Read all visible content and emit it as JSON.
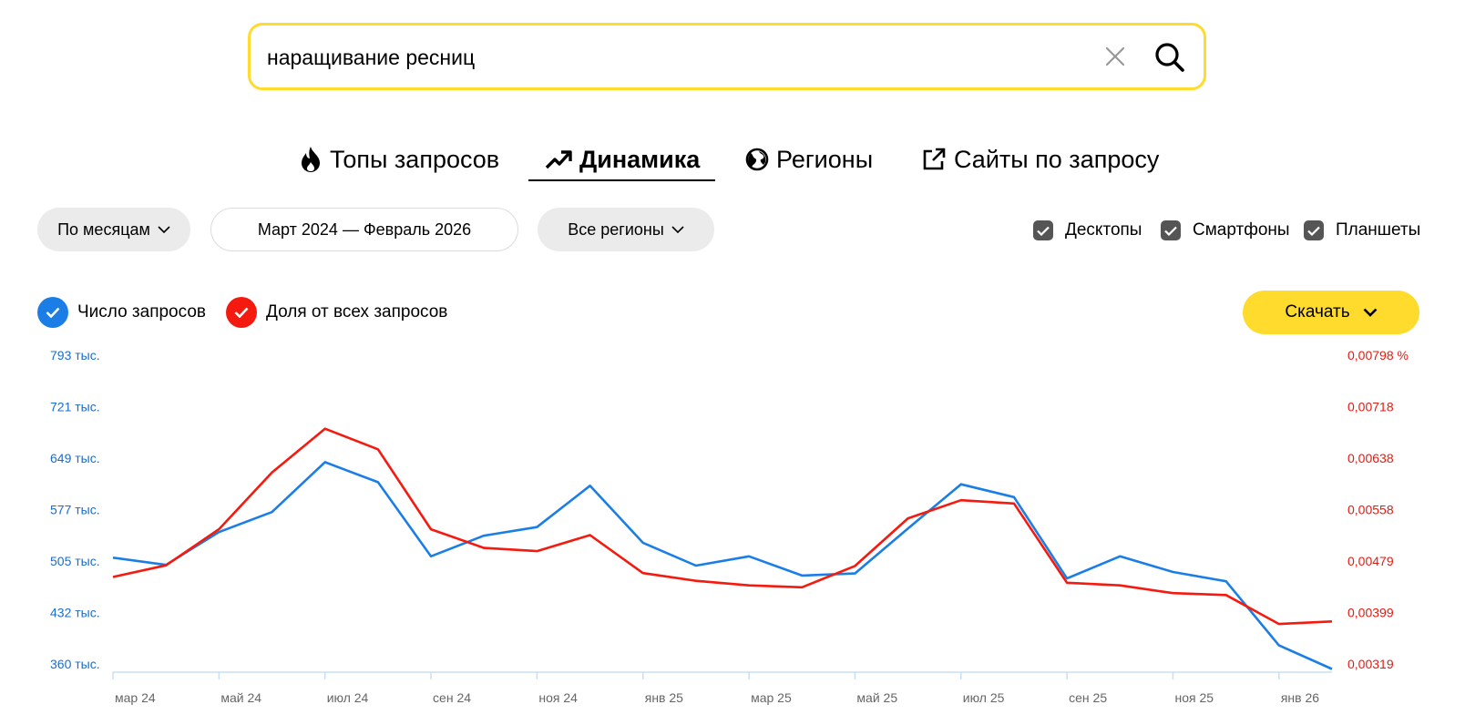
{
  "search": {
    "query": "наращивание ресниц"
  },
  "tabs": [
    {
      "label": "Топы запросов",
      "icon": "flame-icon"
    },
    {
      "label": "Динамика",
      "icon": "trend-up-icon",
      "active": true
    },
    {
      "label": "Регионы",
      "icon": "globe-icon"
    },
    {
      "label": "Сайты по запросу",
      "icon": "external-link-icon"
    }
  ],
  "filters": {
    "period": "По месяцам",
    "range": "Март 2024 — Февраль 2026",
    "regions": "Все регионы"
  },
  "devices": [
    {
      "label": "Десктопы",
      "checked": true
    },
    {
      "label": "Смартфоны",
      "checked": true
    },
    {
      "label": "Планшеты",
      "checked": true
    }
  ],
  "legend": {
    "count": "Число запросов",
    "share": "Доля от всех запросов"
  },
  "download": {
    "label": "Скачать"
  },
  "colors": {
    "blue": "#1b7ee6",
    "red": "#f51a0f",
    "yellow": "#fedb2c"
  },
  "chart_data": {
    "type": "line",
    "x": [
      "мар 24",
      "апр 24",
      "май 24",
      "июн 24",
      "июл 24",
      "авг 24",
      "сен 24",
      "окт 24",
      "ноя 24",
      "дек 24",
      "янв 25",
      "фев 25",
      "мар 25",
      "апр 25",
      "май 25",
      "июн 25",
      "июл 25",
      "авг 25",
      "сен 25",
      "окт 25",
      "ноя 25",
      "дек 25",
      "янв 26",
      "фев 26"
    ],
    "x_tick_labels": [
      "мар 24",
      "май 24",
      "июл 24",
      "сен 24",
      "ноя 24",
      "янв 25",
      "мар 25",
      "май 25",
      "июл 25",
      "сен 25",
      "ноя 25",
      "янв 26"
    ],
    "y_left_ticks": [
      "793 тыс.",
      "721 тыс.",
      "649 тыс.",
      "577 тыс.",
      "505 тыс.",
      "432 тыс.",
      "360 тыс."
    ],
    "y_left_range": [
      360000,
      793000
    ],
    "y_right_ticks": [
      "0,00798 %",
      "0,00718",
      "0,00638",
      "0,00558",
      "0,00479",
      "0,00399",
      "0,00319"
    ],
    "y_right_range": [
      0.00319,
      0.00798
    ],
    "series": [
      {
        "name": "Число запросов",
        "axis": "left",
        "color": "#1b7ee6",
        "values": [
          509000,
          499000,
          545000,
          573000,
          643000,
          615000,
          511000,
          540000,
          552000,
          610000,
          530000,
          498000,
          511000,
          484000,
          487000,
          550000,
          612000,
          594000,
          480000,
          511000,
          489000,
          476000,
          386000,
          353000
        ]
      },
      {
        "name": "Доля от всех запросов",
        "axis": "right",
        "color": "#f51a0f",
        "values": [
          0.00454,
          0.00472,
          0.00528,
          0.00616,
          0.00684,
          0.00652,
          0.00528,
          0.00499,
          0.00494,
          0.00519,
          0.0046,
          0.00448,
          0.00441,
          0.00438,
          0.00471,
          0.00545,
          0.00573,
          0.00568,
          0.00445,
          0.00441,
          0.00429,
          0.00426,
          0.00381,
          0.00385
        ]
      }
    ],
    "grid": false,
    "legend": "top-left"
  }
}
